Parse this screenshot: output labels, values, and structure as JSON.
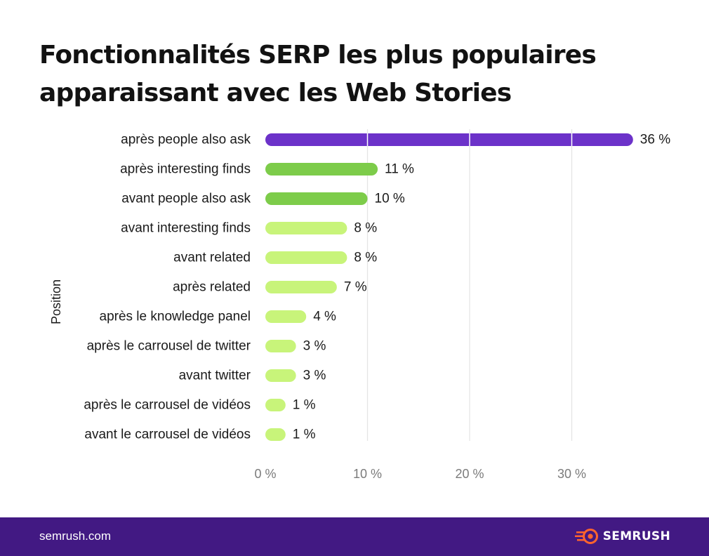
{
  "chart_data": {
    "type": "bar",
    "orientation": "horizontal",
    "title": "Fonctionnalités SERP les plus populaires apparaissant avec les Web Stories",
    "title_lines": [
      "Fonctionnalités SERP les plus populaires",
      "apparaissant avec les Web Stories"
    ],
    "ylabel": "Position",
    "xlabel": "",
    "xlim": [
      0,
      36
    ],
    "x_ticks": [
      0,
      10,
      20,
      30
    ],
    "x_tick_labels": [
      "0 %",
      "10 %",
      "20 %",
      "30 %"
    ],
    "grid": true,
    "categories": [
      "après people also ask",
      "après interesting finds",
      "avant people also ask",
      "avant interesting finds",
      "avant related",
      "après related",
      "après le knowledge panel",
      "après le carrousel de twitter",
      "avant twitter",
      "après le carrousel de vidéos",
      "avant le carrousel de vidéos"
    ],
    "values": [
      36,
      11,
      10,
      8,
      8,
      7,
      4,
      3,
      3,
      1,
      1
    ],
    "value_labels": [
      "36 %",
      "11 %",
      "10 %",
      "8 %",
      "8 %",
      "7 %",
      "4 %",
      "3 %",
      "3 %",
      "1 %",
      "1 %"
    ],
    "colors": {
      "top": "#6c32c9",
      "mid": "#7dcc4a",
      "low": "#c8f47a",
      "grid": "#e4e4e4"
    }
  },
  "footer": {
    "site": "semrush.com",
    "brand": "SEMRUSH",
    "background": "#421983",
    "logo_color": "#ff642d",
    "logo_icon": "semrush-fireball-icon"
  }
}
